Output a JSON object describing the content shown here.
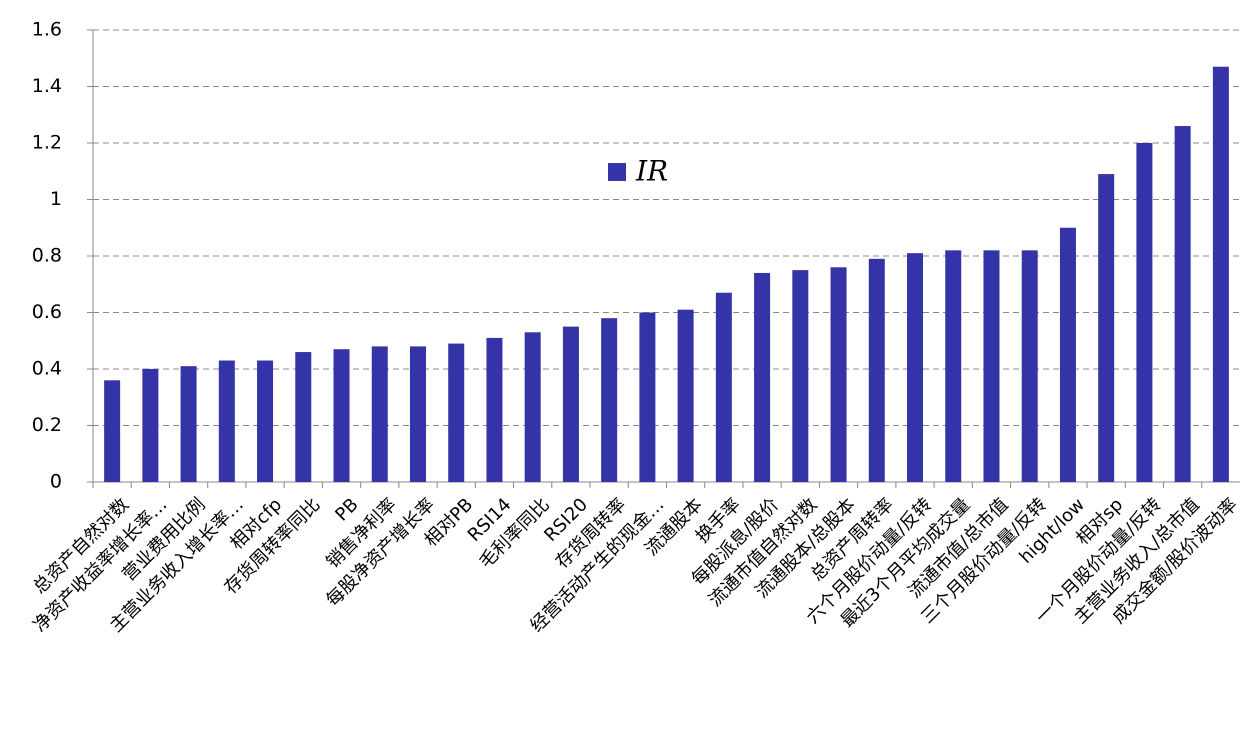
{
  "chart_data": {
    "type": "bar",
    "categories": [
      "总资产自然对数",
      "净资产收益率增长率…",
      "营业费用比例",
      "主营业务收入增长率…",
      "相对cfp",
      "存货周转率同比",
      "PB",
      "销售净利率",
      "每股净资产增长率",
      "相对PB",
      "RSI14",
      "毛利率同比",
      "RSI20",
      "存货周转率",
      "经营活动产生的现金…",
      "流通股本",
      "换手率",
      "每股派息/股价",
      "流通市值自然对数",
      "流通股本/总股本",
      "总资产周转率",
      "六个月股价动量/反转",
      "最近3个月平均成交量",
      "流通市值/总市值",
      "三个月股价动量/反转",
      "hight/low",
      "相对sp",
      "一个月股价动量/反转",
      "主营业务收入/总市值",
      "成交金额/股价波动率"
    ],
    "series": [
      {
        "name": "IR",
        "color": "#3434a8",
        "values": [
          0.36,
          0.4,
          0.41,
          0.43,
          0.43,
          0.46,
          0.47,
          0.48,
          0.48,
          0.49,
          0.51,
          0.53,
          0.55,
          0.58,
          0.6,
          0.61,
          0.67,
          0.74,
          0.75,
          0.76,
          0.79,
          0.81,
          0.82,
          0.82,
          0.82,
          0.9,
          1.09,
          1.2,
          1.26,
          1.47
        ]
      }
    ],
    "ylim": [
      0,
      1.6
    ],
    "yticks": [
      0,
      0.2,
      0.4,
      0.6,
      0.8,
      1,
      1.2,
      1.4,
      1.6
    ],
    "grid": true
  }
}
